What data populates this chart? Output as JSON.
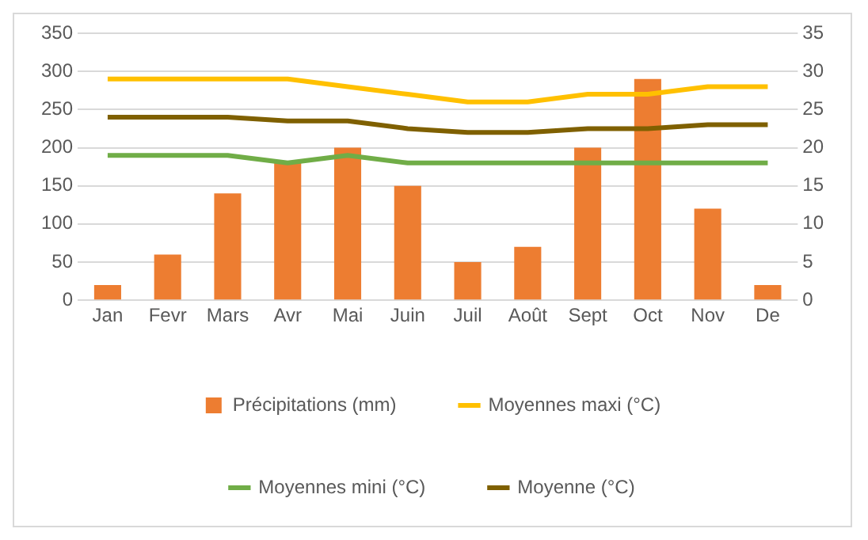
{
  "chart_data": {
    "type": "bar",
    "categories": [
      "Jan",
      "Fevr",
      "Mars",
      "Avr",
      "Mai",
      "Juin",
      "Juil",
      "Août",
      "Sept",
      "Oct",
      "Nov",
      "De"
    ],
    "series": [
      {
        "name": "Précipitations (mm)",
        "color": "#ed7d31",
        "values": [
          20,
          60,
          140,
          180,
          200,
          150,
          50,
          70,
          200,
          290,
          120,
          20
        ]
      },
      {
        "name": "Moyennes maxi (°C)",
        "type": "line",
        "axis": "y2",
        "color": "#ffc000",
        "values": [
          29,
          29,
          29,
          29,
          28,
          27,
          26,
          26,
          27,
          27,
          28,
          28
        ]
      },
      {
        "name": "Moyennes mini (°C)",
        "type": "line",
        "axis": "y2",
        "color": "#70ad47",
        "values": [
          19,
          19,
          19,
          18,
          19,
          18,
          18,
          18,
          18,
          18,
          18,
          18
        ]
      },
      {
        "name": "Moyenne (°C)",
        "type": "line",
        "axis": "y2",
        "color": "#7f6000",
        "values": [
          24,
          24,
          24,
          23.5,
          23.5,
          22.5,
          22,
          22,
          22.5,
          22.5,
          23,
          23
        ]
      }
    ],
    "ylim": [
      0,
      350
    ],
    "yticks": [
      0,
      50,
      100,
      150,
      200,
      250,
      300,
      350
    ],
    "y2lim": [
      0,
      35
    ],
    "y2ticks": [
      0,
      5,
      10,
      15,
      20,
      25,
      30,
      35
    ],
    "grid": "y",
    "legend": "bottom",
    "marker": "none",
    "line_style": "solid"
  }
}
